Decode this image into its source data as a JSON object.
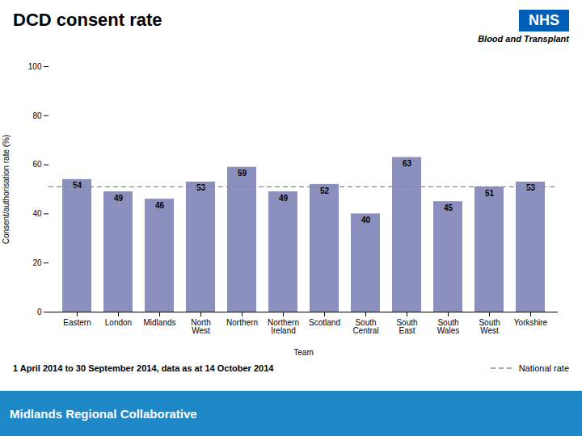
{
  "chart_data": {
    "type": "bar",
    "title": "DCD consent rate",
    "subtitle": "1 April 2014 to 30 September 2014, data as at 14 October 2014",
    "footer": "Midlands Regional Collaborative",
    "annotations": [
      "NHS",
      "Blood and Transplant"
    ],
    "xlabel": "Team",
    "ylabel": "Consent/authorisation rate (%)",
    "categories": [
      "Eastern",
      "London",
      "Midlands",
      "North\nWest",
      "Northern",
      "Northern\nIreland",
      "Scotland",
      "South\nCentral",
      "South\nEast",
      "South\nWales",
      "South\nWest",
      "Yorkshire"
    ],
    "values": [
      54,
      49,
      46,
      53,
      59,
      49,
      52,
      40,
      63,
      45,
      51,
      53
    ],
    "color": "#8B8FBE",
    "data_labels": true,
    "ylim": [
      0,
      100
    ],
    "yticks": [
      0,
      20,
      40,
      60,
      80,
      100
    ],
    "grid": false,
    "legend": "lower right",
    "reference_lines": [
      {
        "name": "National rate",
        "value": 51,
        "color": "#888888",
        "line_style": "dashed"
      }
    ]
  }
}
